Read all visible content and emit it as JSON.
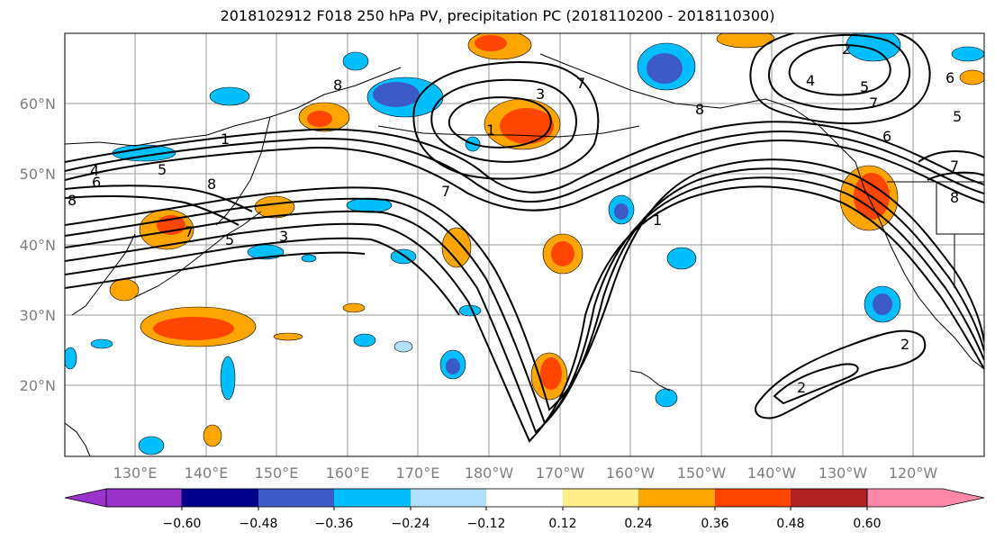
{
  "title": "2018102912 F018 250 hPa PV, precipitation PC (2018110200 - 2018110300)",
  "lat_labels": [
    "60°N",
    "50°N",
    "40°N",
    "30°N",
    "20°N"
  ],
  "lon_labels": [
    "130°E",
    "140°E",
    "150°E",
    "160°E",
    "170°E",
    "180°W",
    "170°W",
    "160°W",
    "150°W",
    "140°W",
    "130°W",
    "120°W"
  ],
  "colorbar": {
    "colors": [
      "#9933cc",
      "#00008b",
      "#3a5bc8",
      "#00bfff",
      "#b0e2ff",
      "#ffffff",
      "#ffee88",
      "#ffa500",
      "#ff4500",
      "#b22222",
      "#ff88aa"
    ],
    "tick_labels": [
      "-0.60",
      "-0.48",
      "-0.36",
      "-0.24",
      "-0.12",
      "0.12",
      "0.24",
      "0.36",
      "0.48",
      "0.60"
    ]
  },
  "contour_labels": [
    "1",
    "2",
    "3",
    "4",
    "5",
    "6",
    "7",
    "8"
  ]
}
